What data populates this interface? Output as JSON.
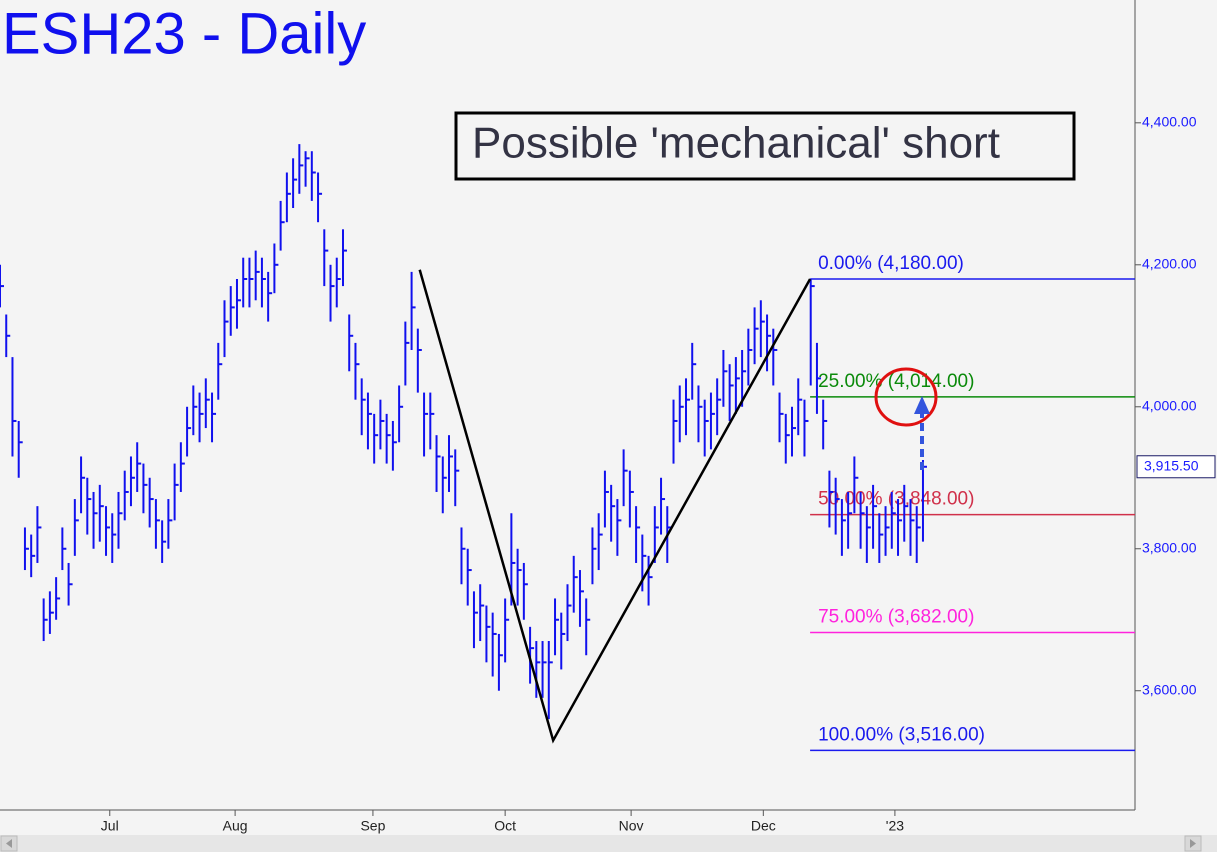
{
  "chart_data": {
    "type": "ohlc",
    "title": "ESH23 - Daily",
    "annotation": "Possible 'mechanical' short",
    "color": "#1010ee",
    "xlim": [
      0,
      182
    ],
    "ylim": [
      3432,
      4573
    ],
    "yticks": [
      {
        "value": 3600,
        "label": "3,600.00"
      },
      {
        "value": 3800,
        "label": "3,800.00"
      },
      {
        "value": 4000,
        "label": "4,000.00"
      },
      {
        "value": 4200,
        "label": "4,200.00"
      },
      {
        "value": 4400,
        "label": "4,400.00"
      }
    ],
    "xticks": [
      {
        "value": 17.6,
        "label": "Jul"
      },
      {
        "value": 37.7,
        "label": "Aug"
      },
      {
        "value": 59.8,
        "label": "Sep"
      },
      {
        "value": 81,
        "label": "Oct"
      },
      {
        "value": 101.2,
        "label": "Nov"
      },
      {
        "value": 122.4,
        "label": "Dec"
      },
      {
        "value": 143.5,
        "label": "'23"
      }
    ],
    "last_price": {
      "value": 3915.5,
      "label": "3,915.50"
    },
    "high": [
      4200,
      4130,
      4070,
      3980,
      3830,
      3820,
      3860,
      3730,
      3740,
      3760,
      3830,
      3780,
      3870,
      3930,
      3900,
      3880,
      3890,
      3860,
      3850,
      3880,
      3910,
      3930,
      3950,
      3920,
      3900,
      3870,
      3840,
      3870,
      3920,
      3950,
      4000,
      4030,
      4020,
      4040,
      4020,
      4090,
      4150,
      4170,
      4180,
      4210,
      4210,
      4220,
      4210,
      4190,
      4230,
      4290,
      4330,
      4350,
      4370,
      4360,
      4360,
      4330,
      4250,
      4200,
      4210,
      4250,
      4130,
      4090,
      4040,
      4020,
      3990,
      4010,
      3990,
      3980,
      4030,
      4120,
      4190,
      4110,
      4020,
      4020,
      3960,
      3930,
      3960,
      3940,
      3830,
      3800,
      3740,
      3750,
      3720,
      3710,
      3680,
      3730,
      3850,
      3800,
      3780,
      3690,
      3670,
      3670,
      3670,
      3730,
      3710,
      3750,
      3790,
      3770,
      3730,
      3830,
      3850,
      3910,
      3890,
      3870,
      3940,
      3910,
      3860,
      3820,
      3790,
      3860,
      3900,
      3860,
      4010,
      4030,
      4040,
      4090,
      4030,
      4010,
      4020,
      4040,
      4080,
      4060,
      4070,
      4080,
      4110,
      4140,
      4150,
      4130,
      4110,
      4020,
      3990,
      4000,
      4040,
      4010,
      4180,
      4090,
      4010,
      3910,
      3900,
      3870,
      3880,
      3930,
      3880,
      3860,
      3890,
      3850,
      3860,
      3880,
      3870,
      3890,
      3870,
      3860,
      3925
    ],
    "low": [
      4140,
      4070,
      3930,
      3900,
      3770,
      3760,
      3780,
      3670,
      3680,
      3700,
      3770,
      3720,
      3790,
      3850,
      3820,
      3800,
      3810,
      3790,
      3780,
      3800,
      3840,
      3860,
      3880,
      3850,
      3830,
      3800,
      3780,
      3800,
      3840,
      3880,
      3930,
      3960,
      3950,
      3970,
      3950,
      4010,
      4070,
      4100,
      4110,
      4140,
      4140,
      4150,
      4140,
      4120,
      4160,
      4220,
      4260,
      4280,
      4300,
      4310,
      4290,
      4260,
      4170,
      4120,
      4140,
      4170,
      4050,
      4010,
      3960,
      3940,
      3920,
      3940,
      3920,
      3910,
      3950,
      4030,
      4080,
      4020,
      3930,
      3940,
      3880,
      3850,
      3880,
      3860,
      3750,
      3720,
      3660,
      3670,
      3640,
      3620,
      3600,
      3640,
      3720,
      3720,
      3700,
      3610,
      3590,
      3590,
      3560,
      3650,
      3630,
      3670,
      3710,
      3690,
      3650,
      3750,
      3770,
      3830,
      3810,
      3790,
      3860,
      3830,
      3780,
      3740,
      3720,
      3780,
      3820,
      3780,
      3920,
      3950,
      3960,
      4010,
      3950,
      3930,
      3940,
      3960,
      4000,
      3980,
      3990,
      4000,
      4030,
      4060,
      4070,
      4050,
      4030,
      3950,
      3920,
      3930,
      3960,
      3930,
      4030,
      3990,
      3940,
      3830,
      3820,
      3790,
      3800,
      3850,
      3800,
      3780,
      3800,
      3780,
      3790,
      3800,
      3790,
      3810,
      3790,
      3780,
      3810
    ],
    "close": [
      4170,
      4100,
      3980,
      3950,
      3800,
      3790,
      3830,
      3700,
      3710,
      3730,
      3800,
      3750,
      3840,
      3900,
      3870,
      3850,
      3860,
      3830,
      3820,
      3850,
      3880,
      3900,
      3920,
      3890,
      3870,
      3840,
      3810,
      3840,
      3890,
      3920,
      3970,
      4000,
      3990,
      4010,
      3990,
      4060,
      4120,
      4140,
      4150,
      4180,
      4180,
      4190,
      4180,
      4160,
      4200,
      4260,
      4300,
      4320,
      4340,
      4350,
      4330,
      4300,
      4220,
      4170,
      4180,
      4220,
      4100,
      4060,
      4010,
      3990,
      3960,
      3980,
      3960,
      3950,
      4000,
      4090,
      4140,
      4080,
      3990,
      3990,
      3930,
      3900,
      3930,
      3910,
      3800,
      3770,
      3710,
      3720,
      3690,
      3680,
      3650,
      3700,
      3780,
      3770,
      3750,
      3660,
      3640,
      3640,
      3640,
      3700,
      3680,
      3720,
      3760,
      3740,
      3700,
      3800,
      3820,
      3880,
      3860,
      3840,
      3910,
      3880,
      3830,
      3790,
      3760,
      3830,
      3870,
      3830,
      3980,
      4000,
      4010,
      4060,
      4000,
      3980,
      3990,
      4010,
      4050,
      4030,
      4040,
      4050,
      4080,
      4110,
      4120,
      4100,
      4080,
      3990,
      3960,
      3970,
      4010,
      3980,
      4170,
      4040,
      3980,
      3880,
      3870,
      3840,
      3850,
      3900,
      3850,
      3830,
      3860,
      3820,
      3830,
      3850,
      3840,
      3860,
      3840,
      3830,
      3915.5
    ],
    "zigzag": {
      "x": [
        67.3,
        88.7,
        129.9
      ],
      "values": [
        4193,
        3530,
        4180
      ],
      "color": "#000000"
    },
    "fib_start": 129.9,
    "fib_levels": [
      {
        "label": "0.00% (4,180.00)",
        "value": 4180,
        "color": "#1a1aee"
      },
      {
        "label": "25.00% (4,014.00)",
        "value": 4014,
        "color": "#0a8a0a"
      },
      {
        "label": "50.00% (3,848.00)",
        "value": 3848,
        "color": "#d0304a"
      },
      {
        "label": "75.00% (3,682.00)",
        "value": 3682,
        "color": "#ff22dd"
      },
      {
        "label": "100.00% (3,516.00)",
        "value": 3516,
        "color": "#1a1aee"
      }
    ]
  }
}
